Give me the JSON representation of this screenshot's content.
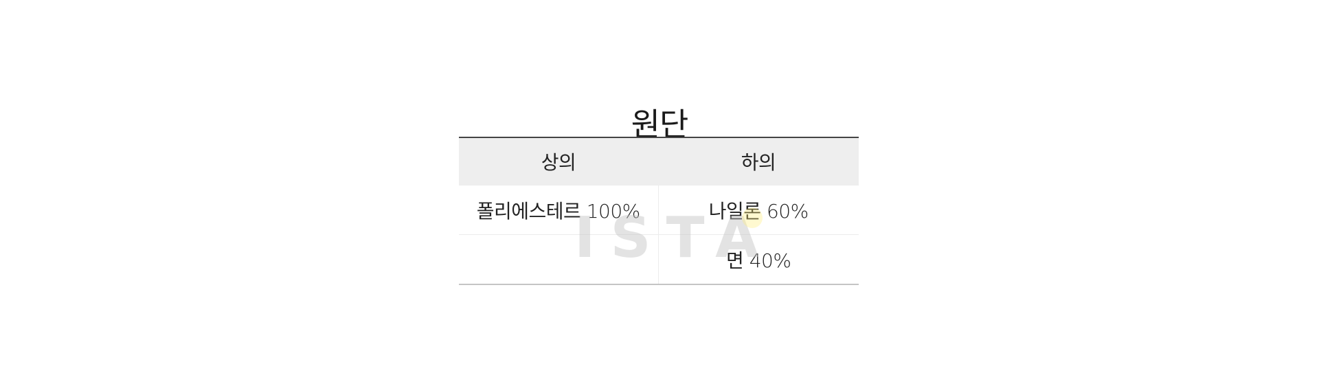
{
  "title": "원단",
  "table": {
    "headers": [
      "상의",
      "하의"
    ],
    "rows": [
      [
        "폴리에스테르 100%",
        "나일론 60%"
      ],
      [
        "",
        "면 40%"
      ]
    ]
  },
  "watermark": {
    "text": "ISTA",
    "color": "#c3c3c3",
    "accent_color": "#ffee78"
  }
}
